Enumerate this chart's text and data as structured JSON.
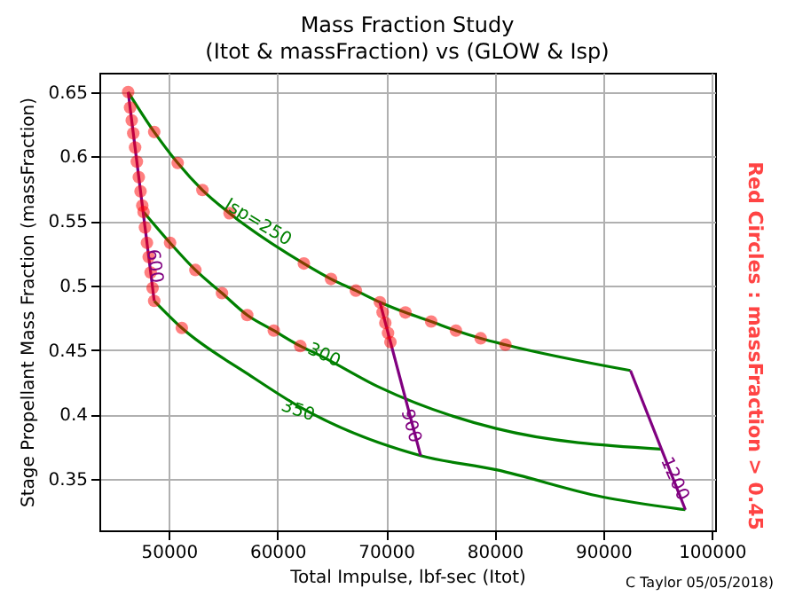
{
  "chart_data": {
    "type": "line",
    "title": "Mass Fraction Study\n(Itot & massFraction) vs (GLOW & Isp)",
    "xlabel": "Total Impulse, lbf-sec (Itot)",
    "ylabel": "Stage Propellant Mass Fraction (massFraction)",
    "xlim": [
      43600,
      100300
    ],
    "ylim": [
      0.31,
      0.665
    ],
    "xticks": [
      50000,
      60000,
      70000,
      80000,
      90000,
      100000
    ],
    "yticks": [
      0.35,
      0.4,
      0.45,
      0.5,
      0.55,
      0.6,
      0.65
    ],
    "grid": true,
    "line_style": "solid",
    "series": [
      {
        "color": "#008000",
        "x": [
          46250,
          48650,
          50810,
          53090,
          55590,
          62430,
          64930,
          67220,
          69430,
          71780,
          74150,
          76430,
          78710,
          80990,
          92500
        ],
        "values": [
          0.65,
          0.619,
          0.595,
          0.574,
          0.556,
          0.517,
          0.505,
          0.496,
          0.487,
          0.479,
          0.472,
          0.465,
          0.459,
          0.454,
          0.434
        ]
      },
      {
        "color": "#008000",
        "x": [
          47670,
          50110,
          52440,
          54890,
          57210,
          59660,
          62100,
          63840,
          69380,
          80130,
          95280
        ],
        "values": [
          0.557,
          0.533,
          0.512,
          0.494,
          0.477,
          0.465,
          0.453,
          0.446,
          0.421,
          0.389,
          0.373
        ]
      },
      {
        "color": "#008000",
        "x": [
          48650,
          51190,
          57330,
          62210,
          73180,
          80130,
          89900,
          97560
        ],
        "values": [
          0.488,
          0.467,
          0.431,
          0.405,
          0.368,
          0.357,
          0.336,
          0.326
        ]
      },
      {
        "color": "#800080",
        "x": [
          46250,
          48650
        ],
        "values": [
          0.65,
          0.488
        ]
      },
      {
        "color": "#800080",
        "x": [
          69430,
          73180
        ],
        "values": [
          0.487,
          0.368
        ]
      },
      {
        "color": "#800080",
        "x": [
          92500,
          97560
        ],
        "values": [
          0.434,
          0.326
        ]
      },
      {
        "type": "scatter",
        "color": "#ff0000",
        "marker": "circle",
        "x": [
          46250,
          46430,
          46580,
          46720,
          46890,
          47050,
          47230,
          47390,
          47550,
          47670,
          47800,
          47980,
          48140,
          48320,
          48500,
          48650,
          48650,
          50810,
          53090,
          55590,
          62430,
          64930,
          67220,
          69430,
          71780,
          74150,
          76430,
          78710,
          80990,
          50110,
          52440,
          54890,
          57210,
          59660,
          62100,
          51190,
          69680,
          69930,
          70180,
          70400
        ],
        "values": [
          0.65,
          0.638,
          0.628,
          0.618,
          0.607,
          0.596,
          0.584,
          0.573,
          0.562,
          0.557,
          0.545,
          0.533,
          0.522,
          0.51,
          0.498,
          0.488,
          0.619,
          0.595,
          0.574,
          0.556,
          0.517,
          0.505,
          0.496,
          0.487,
          0.479,
          0.472,
          0.465,
          0.459,
          0.454,
          0.533,
          0.512,
          0.494,
          0.477,
          0.465,
          0.453,
          0.467,
          0.479,
          0.471,
          0.463,
          0.456
        ]
      }
    ],
    "annotations": [
      {
        "text": "Isp=250",
        "x": 58200,
        "y": 0.549
      },
      {
        "text": "300",
        "x": 64300,
        "y": 0.446
      },
      {
        "text": "350",
        "x": 61890,
        "y": 0.403
      },
      {
        "text": "600",
        "x": 48700,
        "y": 0.515
      },
      {
        "text": "900",
        "x": 72300,
        "y": 0.391
      },
      {
        "text": "1200",
        "x": 96580,
        "y": 0.35
      },
      "Red Circles : massFraction > 0.45",
      "C Taylor 05/05/2018)"
    ]
  }
}
